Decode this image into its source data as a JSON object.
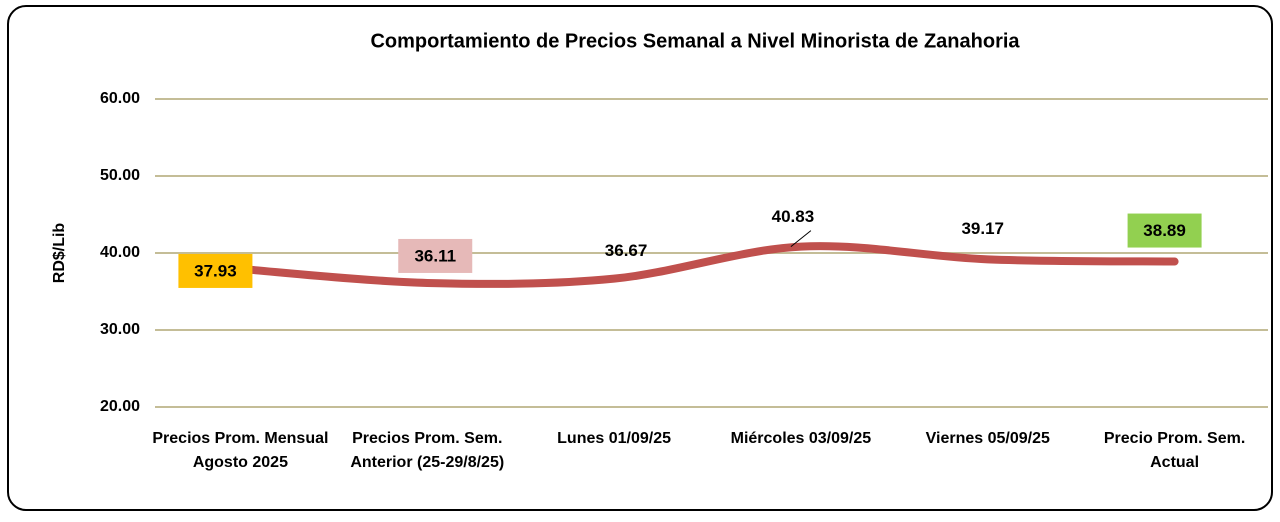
{
  "chart_data": {
    "type": "line",
    "title": "Comportamiento de Precios Semanal a Nivel Minorista de Zanahoria",
    "y_label": "RD$/Lib",
    "categories": [
      "Precios Prom. Mensual Agosto 2025",
      "Precios Prom. Sem. Anterior (25-29/8/25)",
      "Lunes  01/09/25",
      "Miércoles 03/09/25",
      "Viernes 05/09/25",
      "Precio Prom. Sem. Actual"
    ],
    "series": [
      {
        "name": "Precio",
        "color": "#c0504d",
        "values": [
          37.93,
          36.11,
          36.67,
          40.83,
          39.17,
          38.89
        ],
        "value_labels": [
          "37.93",
          "36.11",
          "36.67",
          "40.83",
          "39.17",
          "38.89"
        ],
        "label_backgrounds": [
          "#ffc000",
          "#e6b9b8",
          null,
          null,
          null,
          "#92d050"
        ]
      }
    ],
    "ylim": [
      20,
      60
    ],
    "yticks": [
      {
        "value": 20,
        "label": "20.00"
      },
      {
        "value": 30,
        "label": "30.00"
      },
      {
        "value": 40,
        "label": "40.00"
      },
      {
        "value": 50,
        "label": "50.00"
      },
      {
        "value": 60,
        "label": "60.00"
      }
    ],
    "grid": true,
    "grid_color": "#c4bd97"
  }
}
